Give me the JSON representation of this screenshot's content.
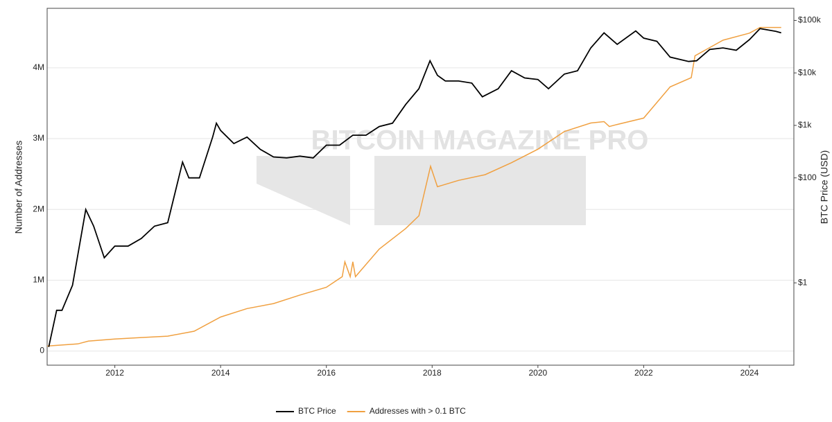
{
  "chart_data": {
    "type": "line",
    "watermark": "BITCOIN MAGAZINE PRO",
    "ylabel": "Number of Addresses",
    "y2label": "BTC Price (USD)",
    "xlim": [
      2010.72,
      2024.84
    ],
    "xticks": [
      2012,
      2014,
      2016,
      2018,
      2020,
      2022,
      2024
    ],
    "ylim": [
      -200000,
      4840000
    ],
    "yticks": [
      0,
      {
        "value": 1000000,
        "label": "1M"
      },
      {
        "value": 2000000,
        "label": "2M"
      },
      {
        "value": 3000000,
        "label": "3M"
      },
      {
        "value": 4000000,
        "label": "4M"
      }
    ],
    "y2lim": [
      0.027,
      170000
    ],
    "y2log": true,
    "y2ticks": [
      {
        "value": 1,
        "label": "$1"
      },
      {
        "value": 100,
        "label": "$100"
      },
      {
        "value": 1000,
        "label": "$1k"
      },
      {
        "value": 10000,
        "label": "$10k"
      },
      {
        "value": 100000,
        "label": "$100k"
      }
    ],
    "grid": true,
    "legend": "bottom",
    "series": [
      {
        "name": "BTC Price",
        "color": "#000000",
        "axis": "y2",
        "x": [
          2010.75,
          2010.9,
          2011.0,
          2011.2,
          2011.45,
          2011.6,
          2011.8,
          2012.0,
          2012.25,
          2012.5,
          2012.75,
          2013.0,
          2013.28,
          2013.4,
          2013.6,
          2013.85,
          2013.92,
          2014.0,
          2014.25,
          2014.5,
          2014.75,
          2015.0,
          2015.25,
          2015.5,
          2015.75,
          2016.0,
          2016.25,
          2016.5,
          2016.75,
          2017.0,
          2017.25,
          2017.5,
          2017.75,
          2017.96,
          2018.1,
          2018.25,
          2018.5,
          2018.75,
          2018.95,
          2019.25,
          2019.5,
          2019.75,
          2020.0,
          2020.2,
          2020.5,
          2020.75,
          2021.0,
          2021.25,
          2021.5,
          2021.85,
          2022.0,
          2022.25,
          2022.5,
          2022.85,
          2023.0,
          2023.25,
          2023.5,
          2023.75,
          2024.0,
          2024.2,
          2024.5,
          2024.6
        ],
        "values": [
          0.06,
          0.3,
          0.3,
          0.9,
          25,
          12,
          3,
          5,
          5,
          7,
          12,
          14,
          200,
          100,
          100,
          600,
          1100,
          800,
          450,
          600,
          350,
          250,
          240,
          260,
          240,
          420,
          420,
          650,
          650,
          950,
          1100,
          2500,
          5000,
          17000,
          9000,
          7000,
          7000,
          6400,
          3500,
          5000,
          11000,
          8000,
          7500,
          5000,
          9500,
          11000,
          30000,
          58000,
          35000,
          63000,
          46000,
          40000,
          20000,
          16500,
          17000,
          28000,
          30000,
          27000,
          43000,
          70000,
          62000,
          58000
        ]
      },
      {
        "name": "Addresses with > 0.1 BTC",
        "color": "#f0a040",
        "x": [
          2010.72,
          2011.3,
          2011.5,
          2012.0,
          2012.5,
          2013.0,
          2013.5,
          2014.0,
          2014.5,
          2015.0,
          2015.5,
          2016.0,
          2016.3,
          2016.35,
          2016.45,
          2016.5,
          2016.55,
          2017.0,
          2017.5,
          2017.75,
          2017.97,
          2018.1,
          2018.5,
          2019.0,
          2019.5,
          2020.0,
          2020.5,
          2021.0,
          2021.25,
          2021.35,
          2021.5,
          2022.0,
          2022.5,
          2022.9,
          2022.97,
          2023.5,
          2024.0,
          2024.2,
          2024.6
        ],
        "values": [
          70000,
          100000,
          140000,
          170000,
          190000,
          210000,
          280000,
          480000,
          600000,
          670000,
          790000,
          900000,
          1050000,
          1260000,
          1050000,
          1260000,
          1050000,
          1440000,
          1730000,
          1910000,
          2610000,
          2320000,
          2410000,
          2490000,
          2660000,
          2850000,
          3100000,
          3220000,
          3240000,
          3170000,
          3200000,
          3290000,
          3730000,
          3860000,
          4170000,
          4390000,
          4490000,
          4570000,
          4570000
        ]
      }
    ]
  }
}
